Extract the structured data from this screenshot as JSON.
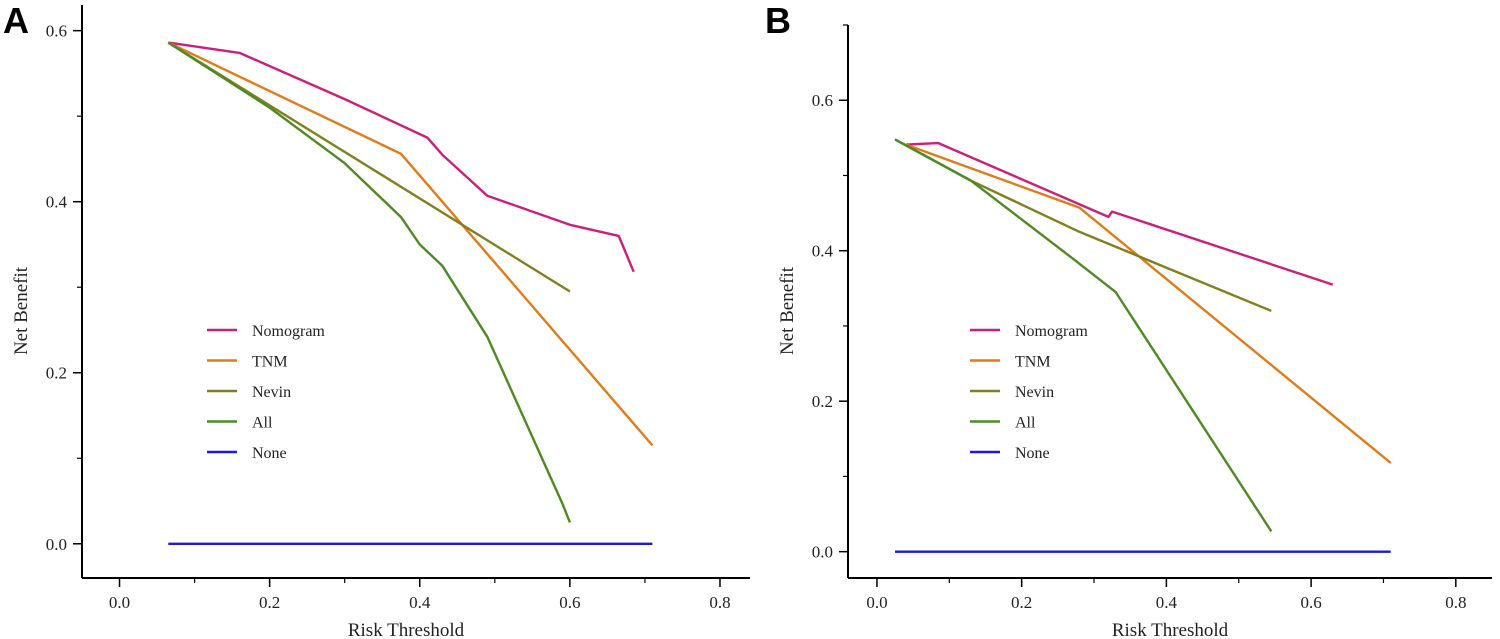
{
  "chart_data": [
    {
      "type": "line",
      "panel": "A",
      "xlabel": "Risk Threshold",
      "ylabel": "Net Benefit",
      "xlim": [
        -0.05,
        0.84
      ],
      "ylim": [
        -0.04,
        0.63
      ],
      "x_ticks": [
        "0.0",
        "0.2",
        "0.4",
        "0.6",
        "0.8"
      ],
      "y_ticks": [
        "0.0",
        "0.2",
        "0.4",
        "0.6"
      ],
      "legend_position": "center-left",
      "series": [
        {
          "name": "Nomogram",
          "color": "#cc1f7a",
          "x": [
            0.065,
            0.16,
            0.3,
            0.41,
            0.43,
            0.49,
            0.6,
            0.665,
            0.685
          ],
          "y": [
            0.586,
            0.574,
            0.52,
            0.475,
            0.455,
            0.407,
            0.373,
            0.36,
            0.318
          ]
        },
        {
          "name": "TNM",
          "color": "#e07b19",
          "x": [
            0.065,
            0.375,
            0.71
          ],
          "y": [
            0.586,
            0.456,
            0.115
          ]
        },
        {
          "name": "Nevin",
          "color": "#808020",
          "x": [
            0.065,
            0.6
          ],
          "y": [
            0.586,
            0.295
          ]
        },
        {
          "name": "All",
          "color": "#4e8a23",
          "x": [
            0.065,
            0.2,
            0.3,
            0.375,
            0.4,
            0.43,
            0.49,
            0.59,
            0.6
          ],
          "y": [
            0.586,
            0.51,
            0.445,
            0.382,
            0.35,
            0.325,
            0.242,
            0.047,
            0.025
          ]
        },
        {
          "name": "None",
          "color": "#1a1adb",
          "x": [
            0.065,
            0.71
          ],
          "y": [
            0.0,
            0.0
          ]
        }
      ]
    },
    {
      "type": "line",
      "panel": "B",
      "xlabel": "Risk Threshold",
      "ylabel": "Net Benefit",
      "xlim": [
        -0.04,
        0.85
      ],
      "ylim": [
        -0.035,
        0.7
      ],
      "x_ticks": [
        "0.0",
        "0.2",
        "0.4",
        "0.6",
        "0.8"
      ],
      "y_ticks": [
        "0.0",
        "0.2",
        "0.4",
        "0.6"
      ],
      "legend_position": "center-left",
      "series": [
        {
          "name": "Nomogram",
          "color": "#cc1f7a",
          "x": [
            0.04,
            0.085,
            0.32,
            0.325,
            0.63
          ],
          "y": [
            0.541,
            0.543,
            0.445,
            0.452,
            0.355
          ]
        },
        {
          "name": "TNM",
          "color": "#e07b19",
          "x": [
            0.04,
            0.28,
            0.71
          ],
          "y": [
            0.541,
            0.457,
            0.118
          ]
        },
        {
          "name": "Nevin",
          "color": "#808020",
          "x": [
            0.025,
            0.13,
            0.28,
            0.545
          ],
          "y": [
            0.548,
            0.493,
            0.425,
            0.32
          ]
        },
        {
          "name": "All",
          "color": "#4e8a23",
          "x": [
            0.025,
            0.13,
            0.27,
            0.33,
            0.545
          ],
          "y": [
            0.548,
            0.493,
            0.39,
            0.345,
            0.027
          ]
        },
        {
          "name": "None",
          "color": "#1a1adb",
          "x": [
            0.025,
            0.71
          ],
          "y": [
            0.0,
            0.0
          ]
        }
      ]
    }
  ]
}
